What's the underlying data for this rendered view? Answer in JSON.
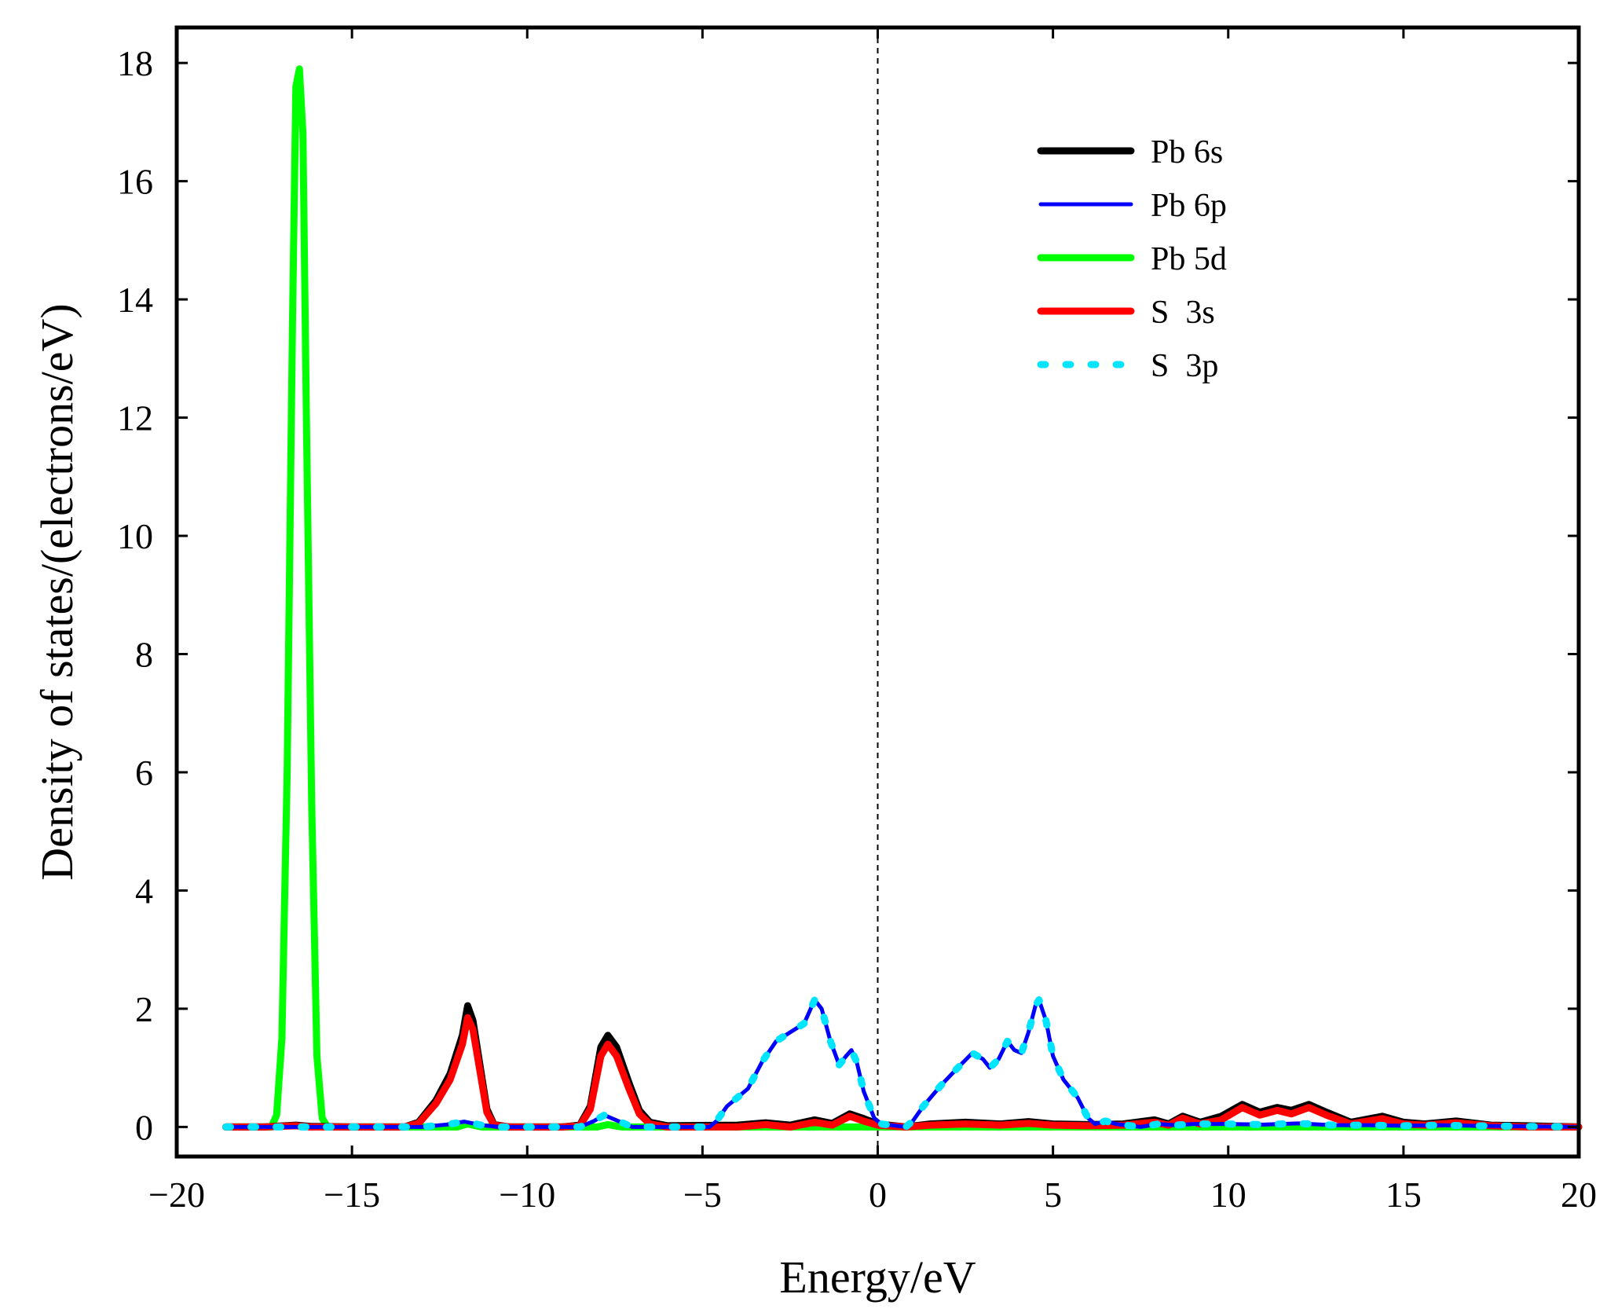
{
  "chart_data": {
    "type": "line",
    "title": "",
    "xlabel": "Energy/eV",
    "ylabel": "Density of states/(electrons/eV)",
    "xlim": [
      -20,
      20
    ],
    "ylim": [
      -0.5,
      18.6
    ],
    "xticks": [
      -20,
      -15,
      -10,
      -5,
      0,
      5,
      10,
      15,
      20
    ],
    "yticks": [
      0,
      2,
      4,
      6,
      8,
      10,
      12,
      14,
      16,
      18
    ],
    "xtick_labels": [
      "−20",
      "−15",
      "−10",
      "−5",
      "0",
      "5",
      "10",
      "15",
      "20"
    ],
    "ytick_labels": [
      "0",
      "2",
      "4",
      "6",
      "8",
      "10",
      "12",
      "14",
      "16",
      "18"
    ],
    "fermi_level": 0,
    "legend_position": "top-right",
    "series": [
      {
        "name": "Pb 6s",
        "color": "#000000",
        "style": "solid",
        "width": "thick",
        "points": [
          [
            -18.6,
            0.0
          ],
          [
            -17.5,
            0.0
          ],
          [
            -16.6,
            0.03
          ],
          [
            -16.2,
            0.01
          ],
          [
            -15,
            0.0
          ],
          [
            -13.5,
            0.0
          ],
          [
            -13.1,
            0.08
          ],
          [
            -12.6,
            0.45
          ],
          [
            -12.2,
            0.9
          ],
          [
            -11.85,
            1.55
          ],
          [
            -11.7,
            2.05
          ],
          [
            -11.55,
            1.8
          ],
          [
            -11.35,
            1.05
          ],
          [
            -11.15,
            0.3
          ],
          [
            -10.95,
            0.04
          ],
          [
            -10.5,
            0.0
          ],
          [
            -9,
            0.0
          ],
          [
            -8.5,
            0.03
          ],
          [
            -8.2,
            0.35
          ],
          [
            -7.9,
            1.35
          ],
          [
            -7.7,
            1.55
          ],
          [
            -7.45,
            1.35
          ],
          [
            -7.1,
            0.75
          ],
          [
            -6.8,
            0.28
          ],
          [
            -6.5,
            0.08
          ],
          [
            -6,
            0.02
          ],
          [
            -4,
            0.03
          ],
          [
            -3.2,
            0.07
          ],
          [
            -2.5,
            0.03
          ],
          [
            -1.8,
            0.12
          ],
          [
            -1.3,
            0.06
          ],
          [
            -0.8,
            0.22
          ],
          [
            -0.4,
            0.14
          ],
          [
            0.0,
            0.05
          ],
          [
            0.8,
            0.0
          ],
          [
            1.5,
            0.05
          ],
          [
            2.5,
            0.08
          ],
          [
            3.5,
            0.05
          ],
          [
            4.3,
            0.09
          ],
          [
            5,
            0.05
          ],
          [
            6,
            0.04
          ],
          [
            7,
            0.05
          ],
          [
            7.9,
            0.12
          ],
          [
            8.3,
            0.05
          ],
          [
            8.7,
            0.18
          ],
          [
            9.2,
            0.08
          ],
          [
            9.8,
            0.18
          ],
          [
            10.4,
            0.38
          ],
          [
            10.9,
            0.25
          ],
          [
            11.4,
            0.33
          ],
          [
            11.8,
            0.28
          ],
          [
            12.3,
            0.38
          ],
          [
            12.8,
            0.25
          ],
          [
            13.5,
            0.08
          ],
          [
            14.4,
            0.18
          ],
          [
            15,
            0.08
          ],
          [
            15.6,
            0.05
          ],
          [
            16.5,
            0.1
          ],
          [
            17.5,
            0.03
          ],
          [
            18.5,
            0.02
          ],
          [
            20,
            0.0
          ]
        ]
      },
      {
        "name": "Pb 6p",
        "color": "#0000ff",
        "style": "solid",
        "width": "thin",
        "points": [
          [
            -18.6,
            0.0
          ],
          [
            -13,
            0.0
          ],
          [
            -12.3,
            0.04
          ],
          [
            -11.8,
            0.09
          ],
          [
            -11.3,
            0.03
          ],
          [
            -10.8,
            0.0
          ],
          [
            -8.5,
            0.0
          ],
          [
            -8.1,
            0.1
          ],
          [
            -7.8,
            0.2
          ],
          [
            -7.4,
            0.1
          ],
          [
            -7,
            0.0
          ],
          [
            -4.8,
            0.0
          ],
          [
            -4.6,
            0.1
          ],
          [
            -4.3,
            0.35
          ],
          [
            -4.0,
            0.5
          ],
          [
            -3.7,
            0.65
          ],
          [
            -3.3,
            1.1
          ],
          [
            -2.9,
            1.45
          ],
          [
            -2.5,
            1.6
          ],
          [
            -2.1,
            1.75
          ],
          [
            -1.8,
            2.15
          ],
          [
            -1.6,
            2.0
          ],
          [
            -1.35,
            1.45
          ],
          [
            -1.1,
            1.05
          ],
          [
            -0.9,
            1.2
          ],
          [
            -0.75,
            1.3
          ],
          [
            -0.6,
            1.1
          ],
          [
            -0.4,
            0.6
          ],
          [
            -0.1,
            0.15
          ],
          [
            0.1,
            0.05
          ],
          [
            0.8,
            0.0
          ],
          [
            1.0,
            0.1
          ],
          [
            1.3,
            0.35
          ],
          [
            1.8,
            0.7
          ],
          [
            2.2,
            0.95
          ],
          [
            2.7,
            1.25
          ],
          [
            3.0,
            1.15
          ],
          [
            3.2,
            1.0
          ],
          [
            3.45,
            1.15
          ],
          [
            3.7,
            1.45
          ],
          [
            3.9,
            1.3
          ],
          [
            4.1,
            1.25
          ],
          [
            4.3,
            1.6
          ],
          [
            4.5,
            2.05
          ],
          [
            4.6,
            2.15
          ],
          [
            4.8,
            1.8
          ],
          [
            5.0,
            1.2
          ],
          [
            5.3,
            0.8
          ],
          [
            5.7,
            0.5
          ],
          [
            6.0,
            0.15
          ],
          [
            6.2,
            0.05
          ],
          [
            6.5,
            0.1
          ],
          [
            6.8,
            0.05
          ],
          [
            7.5,
            0.0
          ],
          [
            8.0,
            0.05
          ],
          [
            8.5,
            0.03
          ],
          [
            9.0,
            0.05
          ],
          [
            10,
            0.05
          ],
          [
            11,
            0.04
          ],
          [
            12,
            0.06
          ],
          [
            13,
            0.03
          ],
          [
            14,
            0.03
          ],
          [
            15,
            0.02
          ],
          [
            16,
            0.03
          ],
          [
            17,
            0.02
          ],
          [
            20,
            0.0
          ]
        ]
      },
      {
        "name": "Pb 5d",
        "color": "#00ff00",
        "style": "solid",
        "width": "thick",
        "points": [
          [
            -18.6,
            0.0
          ],
          [
            -17.3,
            0.0
          ],
          [
            -17.15,
            0.2
          ],
          [
            -17.0,
            1.5
          ],
          [
            -16.85,
            6.0
          ],
          [
            -16.7,
            13.5
          ],
          [
            -16.6,
            17.6
          ],
          [
            -16.5,
            17.9
          ],
          [
            -16.4,
            16.8
          ],
          [
            -16.3,
            12.0
          ],
          [
            -16.15,
            5.5
          ],
          [
            -16.0,
            1.2
          ],
          [
            -15.85,
            0.15
          ],
          [
            -15.7,
            0.0
          ],
          [
            -12,
            0.0
          ],
          [
            -11.7,
            0.05
          ],
          [
            -11.3,
            0.0
          ],
          [
            -8,
            0.0
          ],
          [
            -7.7,
            0.04
          ],
          [
            -7.3,
            0.0
          ],
          [
            20,
            0.0
          ]
        ]
      },
      {
        "name": "S  3s",
        "color": "#ff0000",
        "style": "solid",
        "width": "thick",
        "points": [
          [
            -18.6,
            0.0
          ],
          [
            -17.5,
            0.0
          ],
          [
            -16.6,
            0.02
          ],
          [
            -16.2,
            0.0
          ],
          [
            -15,
            0.0
          ],
          [
            -13.5,
            0.0
          ],
          [
            -13.1,
            0.06
          ],
          [
            -12.6,
            0.4
          ],
          [
            -12.2,
            0.8
          ],
          [
            -11.85,
            1.4
          ],
          [
            -11.7,
            1.85
          ],
          [
            -11.55,
            1.65
          ],
          [
            -11.35,
            0.95
          ],
          [
            -11.15,
            0.25
          ],
          [
            -10.95,
            0.03
          ],
          [
            -10.5,
            0.0
          ],
          [
            -9,
            0.0
          ],
          [
            -8.5,
            0.02
          ],
          [
            -8.2,
            0.3
          ],
          [
            -7.9,
            1.2
          ],
          [
            -7.7,
            1.4
          ],
          [
            -7.45,
            1.2
          ],
          [
            -7.1,
            0.65
          ],
          [
            -6.8,
            0.22
          ],
          [
            -6.5,
            0.05
          ],
          [
            -6,
            0.0
          ],
          [
            -4,
            0.0
          ],
          [
            -3.2,
            0.04
          ],
          [
            -2.5,
            0.0
          ],
          [
            -1.8,
            0.08
          ],
          [
            -1.3,
            0.03
          ],
          [
            -0.8,
            0.18
          ],
          [
            -0.4,
            0.1
          ],
          [
            0.0,
            0.03
          ],
          [
            0.8,
            0.0
          ],
          [
            1.5,
            0.03
          ],
          [
            2.5,
            0.05
          ],
          [
            3.5,
            0.03
          ],
          [
            4.3,
            0.06
          ],
          [
            5,
            0.03
          ],
          [
            6,
            0.02
          ],
          [
            7,
            0.03
          ],
          [
            7.9,
            0.08
          ],
          [
            8.3,
            0.03
          ],
          [
            8.7,
            0.15
          ],
          [
            9.2,
            0.05
          ],
          [
            9.8,
            0.12
          ],
          [
            10.4,
            0.33
          ],
          [
            10.9,
            0.2
          ],
          [
            11.4,
            0.28
          ],
          [
            11.8,
            0.22
          ],
          [
            12.3,
            0.33
          ],
          [
            12.8,
            0.2
          ],
          [
            13.5,
            0.05
          ],
          [
            14.4,
            0.14
          ],
          [
            15,
            0.05
          ],
          [
            15.6,
            0.03
          ],
          [
            16.5,
            0.07
          ],
          [
            17.5,
            0.02
          ],
          [
            18.5,
            0.0
          ],
          [
            20,
            0.0
          ]
        ]
      },
      {
        "name": "S  3p",
        "color": "#00e5ff",
        "style": "dotted",
        "width": "thick",
        "points": [
          [
            -18.6,
            0.0
          ],
          [
            -13,
            0.0
          ],
          [
            -12.3,
            0.04
          ],
          [
            -11.8,
            0.09
          ],
          [
            -11.3,
            0.03
          ],
          [
            -10.8,
            0.0
          ],
          [
            -8.5,
            0.0
          ],
          [
            -8.1,
            0.1
          ],
          [
            -7.8,
            0.2
          ],
          [
            -7.4,
            0.1
          ],
          [
            -7,
            0.0
          ],
          [
            -4.8,
            0.0
          ],
          [
            -4.6,
            0.1
          ],
          [
            -4.3,
            0.35
          ],
          [
            -4.0,
            0.5
          ],
          [
            -3.7,
            0.65
          ],
          [
            -3.3,
            1.1
          ],
          [
            -2.9,
            1.45
          ],
          [
            -2.5,
            1.6
          ],
          [
            -2.1,
            1.75
          ],
          [
            -1.8,
            2.15
          ],
          [
            -1.6,
            2.0
          ],
          [
            -1.35,
            1.45
          ],
          [
            -1.1,
            1.05
          ],
          [
            -0.9,
            1.2
          ],
          [
            -0.75,
            1.3
          ],
          [
            -0.6,
            1.1
          ],
          [
            -0.4,
            0.6
          ],
          [
            -0.1,
            0.15
          ],
          [
            0.1,
            0.05
          ],
          [
            0.8,
            0.0
          ],
          [
            1.0,
            0.1
          ],
          [
            1.3,
            0.35
          ],
          [
            1.8,
            0.7
          ],
          [
            2.2,
            0.95
          ],
          [
            2.7,
            1.25
          ],
          [
            3.0,
            1.15
          ],
          [
            3.2,
            1.0
          ],
          [
            3.45,
            1.15
          ],
          [
            3.7,
            1.45
          ],
          [
            3.9,
            1.3
          ],
          [
            4.1,
            1.25
          ],
          [
            4.3,
            1.6
          ],
          [
            4.5,
            2.05
          ],
          [
            4.6,
            2.15
          ],
          [
            4.8,
            1.8
          ],
          [
            5.0,
            1.2
          ],
          [
            5.3,
            0.8
          ],
          [
            5.7,
            0.5
          ],
          [
            6.0,
            0.15
          ],
          [
            6.2,
            0.05
          ],
          [
            6.5,
            0.1
          ],
          [
            6.8,
            0.05
          ],
          [
            7.5,
            0.0
          ],
          [
            8.0,
            0.05
          ],
          [
            8.5,
            0.03
          ],
          [
            9.0,
            0.05
          ],
          [
            10,
            0.05
          ],
          [
            11,
            0.04
          ],
          [
            12,
            0.06
          ],
          [
            13,
            0.03
          ],
          [
            14,
            0.03
          ],
          [
            15,
            0.02
          ],
          [
            16,
            0.03
          ],
          [
            17,
            0.02
          ],
          [
            20,
            0.0
          ]
        ]
      }
    ]
  }
}
